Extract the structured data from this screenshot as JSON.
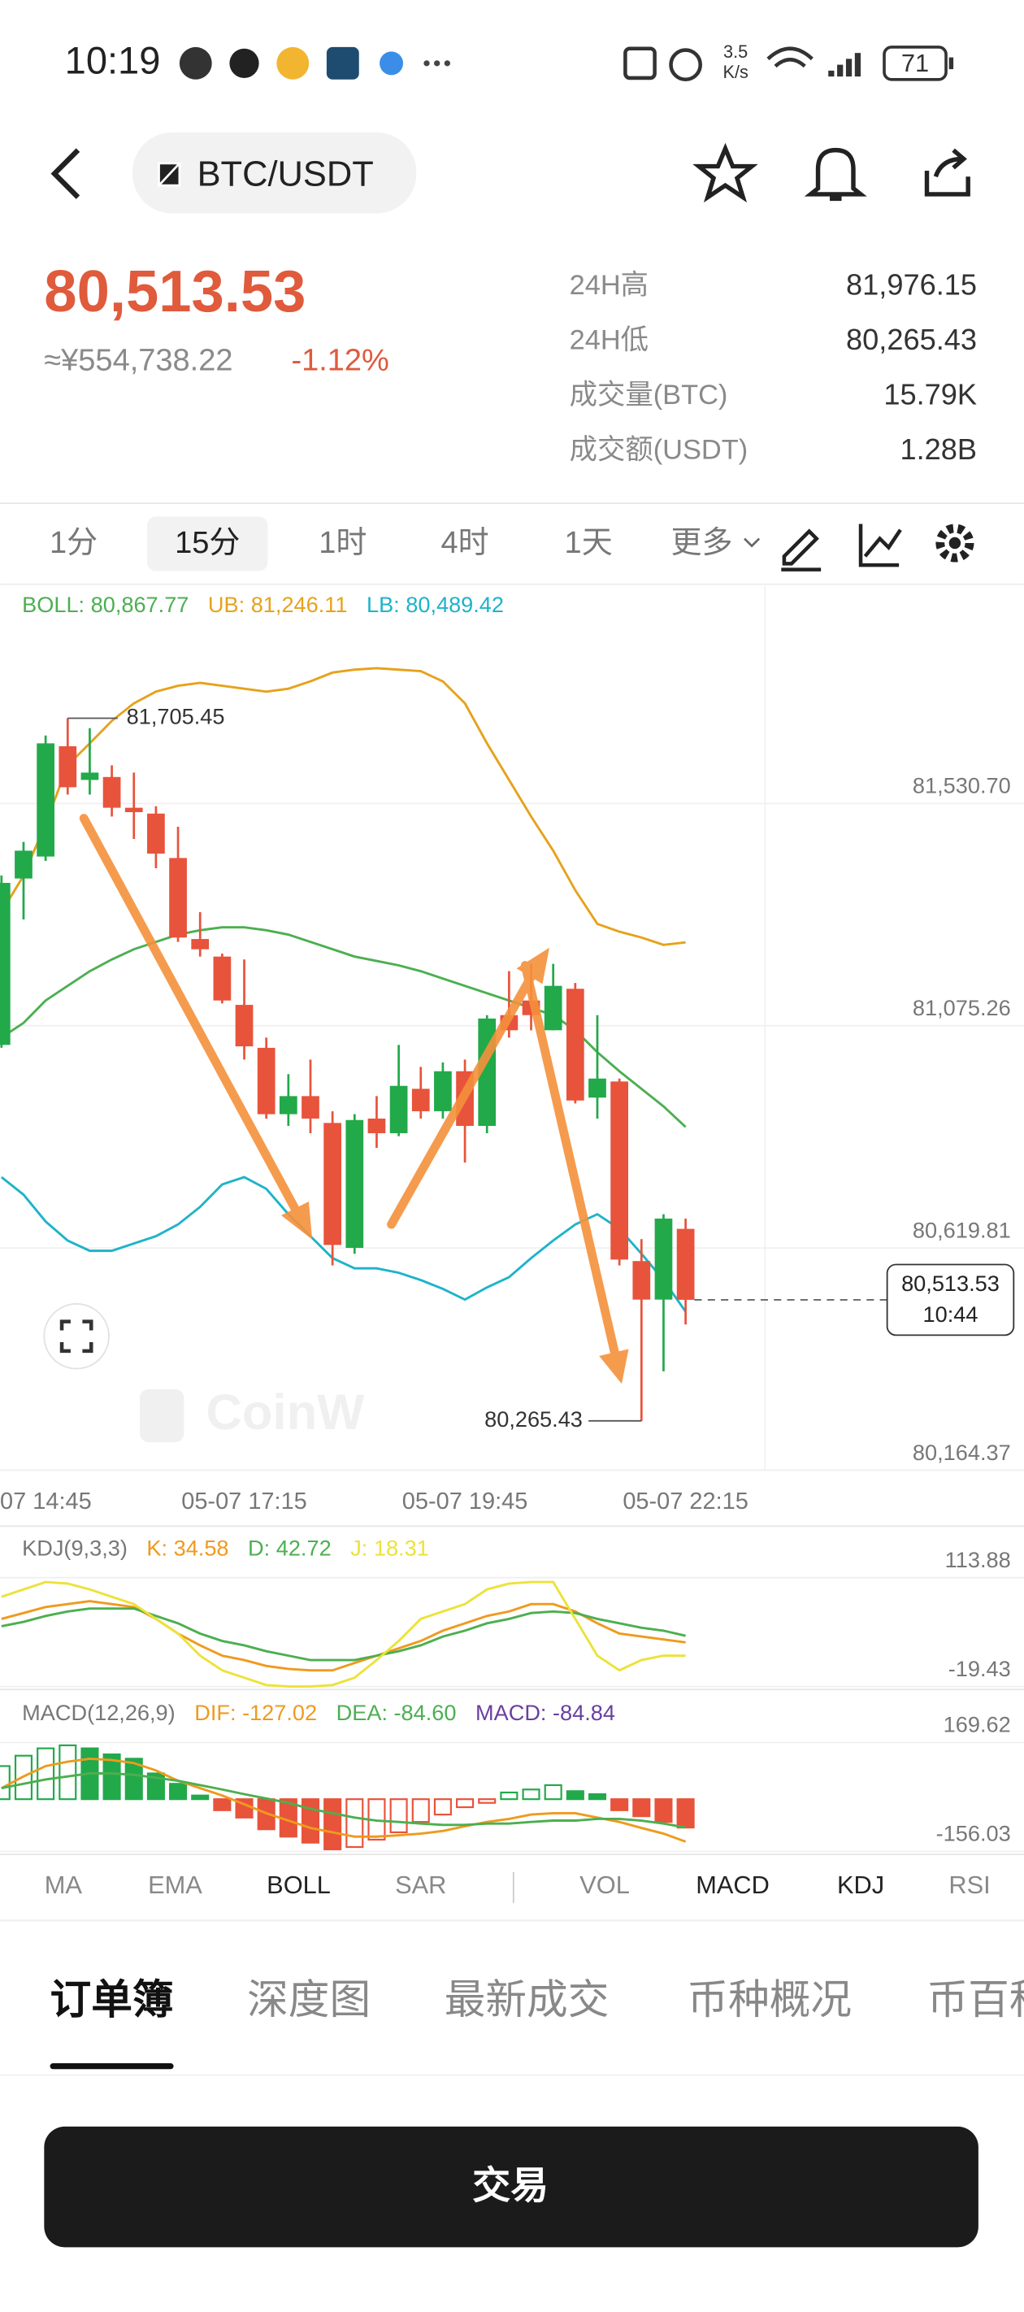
{
  "status_bar": {
    "time": "10:19",
    "speed": "3.5",
    "speed_unit": "K/s",
    "battery": "71"
  },
  "header": {
    "pair": "BTC/USDT"
  },
  "ticker": {
    "price": "80,513.53",
    "fiat": "≈¥554,738.22",
    "change": "-1.12%",
    "stats": [
      {
        "label": "24H高",
        "value": "81,976.15"
      },
      {
        "label": "24H低",
        "value": "80,265.43"
      },
      {
        "label": "成交量(BTC)",
        "value": "15.79K"
      },
      {
        "label": "成交额(USDT)",
        "value": "1.28B"
      }
    ]
  },
  "intervals": {
    "items": [
      "1分",
      "15分",
      "1时",
      "4时",
      "1天",
      "更多"
    ],
    "selected": 1
  },
  "chart_data": [
    {
      "type": "candlestick",
      "categories": [
        null,
        "07 14:45",
        null,
        null,
        null,
        null,
        null,
        null,
        null,
        null,
        null,
        "05-07 17:15",
        null,
        null,
        null,
        null,
        null,
        null,
        null,
        null,
        null,
        "05-07 19:45",
        null,
        null,
        null,
        null,
        null,
        null,
        null,
        null,
        null,
        "05-07 22:15"
      ],
      "open": [
        81036,
        81377,
        81422,
        81648,
        81579,
        81585,
        81522,
        81510,
        81419,
        81253,
        81217,
        81118,
        81030,
        80894,
        80931,
        80876,
        80620,
        80885,
        80855,
        80946,
        80900,
        80982,
        80870,
        81097,
        81127,
        81066,
        81151,
        80928,
        80961,
        80593,
        80514,
        80659
      ],
      "high": [
        81383,
        81452,
        81670,
        81705.45,
        81685,
        81609,
        81594,
        81525,
        81483,
        81308,
        81223,
        81211,
        81051,
        80976,
        81006,
        80900,
        80894,
        80931,
        81036,
        80991,
        81000,
        81006,
        81097,
        81187,
        81202,
        81202,
        81163,
        81097,
        80967,
        80638,
        80689,
        80680
      ],
      "low": [
        81030,
        81293,
        81413,
        81549,
        81549,
        81504,
        81458,
        81398,
        81247,
        81217,
        81121,
        81006,
        80885,
        80870,
        80855,
        80584,
        80608,
        80825,
        80849,
        80885,
        80885,
        80795,
        80855,
        81051,
        81066,
        81066,
        80916,
        80885,
        80584,
        80265.43,
        80367,
        80463
      ],
      "close": [
        81368,
        81434,
        81654,
        81564,
        81594,
        81522,
        81513,
        81428,
        81256,
        81232,
        81127,
        81033,
        80894,
        80931,
        80885,
        80626,
        80882,
        80855,
        80952,
        80900,
        80982,
        80870,
        81090,
        81066,
        81097,
        81157,
        80922,
        80967,
        80596,
        80514,
        80680,
        80513.53
      ],
      "up_color": "#22a94a",
      "down_color": "#e8533b",
      "series": [
        {
          "label": "BOLL: 80,867.77",
          "color": "#4caf50",
          "values": [
            81051,
            81081,
            81127,
            81157,
            81187,
            81211,
            81232,
            81247,
            81262,
            81271,
            81277,
            81277,
            81271,
            81262,
            81247,
            81232,
            81217,
            81208,
            81199,
            81187,
            81172,
            81157,
            81142,
            81127,
            81112,
            81097,
            81066,
            81021,
            80982,
            80946,
            80910,
            80867.77
          ]
        },
        {
          "label": "UB: 81,246.11",
          "color": "#e6a21c",
          "values": [
            81308,
            81383,
            81489,
            81609,
            81654,
            81700,
            81736,
            81760,
            81772,
            81778,
            81772,
            81766,
            81760,
            81766,
            81781,
            81799,
            81805,
            81808,
            81805,
            81802,
            81781,
            81736,
            81654,
            81579,
            81504,
            81434,
            81353,
            81284,
            81268,
            81256,
            81241,
            81246.11
          ]
        },
        {
          "label": "LB: 80,489.42",
          "color": "#1eb3c9",
          "values": [
            80765,
            80729,
            80674,
            80635,
            80614,
            80614,
            80629,
            80644,
            80668,
            80704,
            80750,
            80765,
            80741,
            80689,
            80644,
            80599,
            80578,
            80578,
            80569,
            80554,
            80536,
            80514,
            80539,
            80560,
            80599,
            80635,
            80668,
            80689,
            80659,
            80608,
            80554,
            80489.42
          ]
        }
      ],
      "ylim": [
        80164.37,
        81977
      ],
      "yticks": [
        {
          "value": 81530.7,
          "label": "81,530.70"
        },
        {
          "value": 81075.26,
          "label": "81,075.26"
        },
        {
          "value": 80619.81,
          "label": "80,619.81"
        },
        {
          "value": 80164.37,
          "label": "80,164.37"
        }
      ],
      "grid": true,
      "annotations": {
        "high": "81,705.45",
        "low": "80,265.43",
        "last_price": "80,513.53",
        "countdown": "10:44"
      },
      "watermark": "CoinW"
    },
    {
      "type": "line",
      "title": "KDJ(9,3,3)",
      "series": [
        {
          "label": "K: 34.58",
          "color": "#ef9a1e",
          "values": [
            63.4,
            70.6,
            77.9,
            81.5,
            85.1,
            81.5,
            77.9,
            63.4,
            45.4,
            31.0,
            18.4,
            13.0,
            5.8,
            2.2,
            0.4,
            0.4,
            9.4,
            18.4,
            27.4,
            36.4,
            49.0,
            58.0,
            67.0,
            72.5,
            81.5,
            81.5,
            72.5,
            58.0,
            45.4,
            41.8,
            38.2,
            34.58
          ]
        },
        {
          "label": "D: 42.72",
          "color": "#4caf50",
          "values": [
            54.4,
            59.8,
            67.0,
            72.5,
            76.1,
            76.1,
            76.1,
            67.0,
            58.0,
            45.4,
            36.4,
            31.0,
            23.8,
            18.4,
            13.0,
            13.0,
            13.0,
            18.4,
            23.8,
            31.0,
            41.8,
            49.0,
            58.0,
            63.4,
            70.6,
            72.5,
            70.6,
            63.4,
            58.0,
            52.6,
            49.0,
            42.72
          ]
        },
        {
          "label": "J: 18.31",
          "color": "#ece23a",
          "values": [
            90.5,
            99.5,
            108.5,
            106.7,
            99.5,
            90.5,
            81.5,
            63.4,
            45.4,
            18.4,
            0.4,
            -8.6,
            -17.6,
            -19.4,
            -19.4,
            -17.6,
            -8.6,
            13.0,
            36.4,
            63.4,
            72.5,
            81.5,
            99.5,
            106.7,
            108.5,
            108.5,
            63.4,
            18.4,
            0.4,
            13.0,
            18.4,
            18.31
          ]
        }
      ],
      "ylim": [
        -19.43,
        171.6
      ],
      "yticks": [
        113.88,
        -19.43
      ]
    },
    {
      "type": "combo",
      "title": "MACD(12,26,9)",
      "bars": {
        "label": "MACD: -84.84",
        "color": "#6a3fa0",
        "up_color": "#22a94a",
        "down_color": "#e8533b",
        "values": [
          99,
          130,
          152,
          161,
          152,
          134,
          121,
          77,
          46,
          11,
          -33,
          -55,
          -90,
          -112,
          -130,
          -150,
          -143,
          -121,
          -99,
          -68,
          -46,
          -24,
          -11,
          20,
          29,
          42,
          24,
          15,
          -33,
          -51,
          -68,
          -84.84
        ]
      },
      "series": [
        {
          "label": "DIF: -127.02",
          "color": "#ef9a1e",
          "values": [
            33,
            68,
            99,
            112,
            121,
            117,
            108,
            86,
            55,
            33,
            11,
            -15,
            -42,
            -64,
            -86,
            -99,
            -112,
            -112,
            -108,
            -103,
            -95,
            -81,
            -68,
            -59,
            -46,
            -42,
            -42,
            -55,
            -68,
            -86,
            -103,
            -127.02
          ]
        },
        {
          "label": "DEA: -84.60",
          "color": "#4caf50",
          "values": [
            33,
            46,
            59,
            68,
            77,
            77,
            73,
            64,
            55,
            42,
            29,
            15,
            2,
            -11,
            -29,
            -42,
            -55,
            -64,
            -68,
            -73,
            -77,
            -77,
            -73,
            -73,
            -68,
            -64,
            -64,
            -59,
            -59,
            -64,
            -73,
            -84.6
          ]
        }
      ],
      "ylim": [
        -156.03,
        319.2
      ],
      "yticks": [
        169.62,
        -156.03
      ]
    }
  ],
  "indicator_tabs": {
    "items": [
      "MA",
      "EMA",
      "BOLL",
      "SAR",
      "VOL",
      "MACD",
      "KDJ",
      "RSI"
    ],
    "active": [
      2,
      5,
      6
    ]
  },
  "section_tabs": {
    "items": [
      "订单簿",
      "深度图",
      "最新成交",
      "币种概况",
      "币百科"
    ],
    "selected": 0
  },
  "action": {
    "button": "交易"
  }
}
